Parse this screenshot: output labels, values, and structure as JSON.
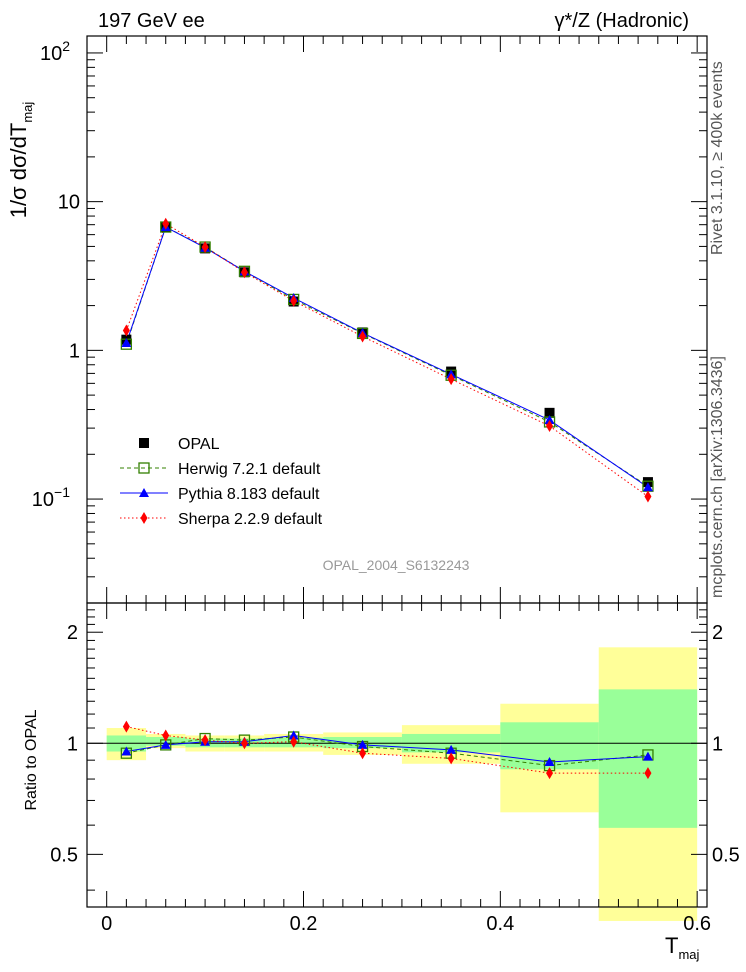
{
  "header": {
    "left_label": "197 GeV ee",
    "right_label": "γ*/Z (Hadronic)"
  },
  "side_labels": {
    "rivet": "Rivet 3.1.10, ≥ 400k events",
    "mcplots": "mcplots.cern.ch [arXiv:1306.3436]"
  },
  "main_plot": {
    "ylabel": "1/σ dσ/dT",
    "ylabel_sub": "maj",
    "watermark": "OPAL_2004_S6132243",
    "yticks": [
      {
        "value": 0.1,
        "base": "10",
        "exp": "−1"
      },
      {
        "value": 1,
        "base": "1",
        "exp": ""
      },
      {
        "value": 10,
        "base": "10",
        "exp": ""
      },
      {
        "value": 100,
        "base": "10",
        "exp": "2"
      }
    ]
  },
  "ratio_plot": {
    "ylabel": "Ratio to OPAL",
    "yticks": [
      "0.5",
      "1",
      "2"
    ]
  },
  "x_axis": {
    "label": "T",
    "label_sub": "maj",
    "ticks": [
      "0",
      "0.2",
      "0.4",
      "0.6"
    ]
  },
  "legend": [
    {
      "key": "opal",
      "label": "OPAL"
    },
    {
      "key": "herwig",
      "label": "Herwig 7.2.1 default"
    },
    {
      "key": "pythia",
      "label": "Pythia 8.183 default"
    },
    {
      "key": "sherpa",
      "label": "Sherpa 2.2.9 default"
    }
  ],
  "colors": {
    "opal": "#000000",
    "herwig": "#338000",
    "pythia": "#0000ff",
    "sherpa": "#ff0000",
    "band_inner": "#99ff99",
    "band_outer": "#ffff99"
  },
  "chart_data": [
    {
      "type": "line",
      "title": "",
      "xlabel": "T_maj",
      "ylabel": "1/σ dσ/dT_maj",
      "xlim": [
        -0.02,
        0.61
      ],
      "ylim": [
        0.02,
        130
      ],
      "yscale": "log",
      "x_edges": [
        0,
        0.04,
        0.08,
        0.12,
        0.16,
        0.22,
        0.3,
        0.4,
        0.5,
        0.6
      ],
      "x": [
        0.02,
        0.06,
        0.1,
        0.14,
        0.19,
        0.26,
        0.35,
        0.45,
        0.55
      ],
      "series": [
        {
          "name": "OPAL",
          "values": [
            1.18,
            6.8,
            4.85,
            3.35,
            2.13,
            1.32,
            0.72,
            0.38,
            0.13
          ]
        },
        {
          "name": "Herwig 7.2.1 default",
          "values": [
            1.1,
            6.75,
            4.95,
            3.4,
            2.2,
            1.3,
            0.68,
            0.33,
            0.122
          ]
        },
        {
          "name": "Pythia 8.183 default",
          "values": [
            1.12,
            6.75,
            4.9,
            3.4,
            2.25,
            1.31,
            0.69,
            0.34,
            0.12
          ]
        },
        {
          "name": "Sherpa 2.2.9 default",
          "values": [
            1.36,
            7.1,
            4.95,
            3.35,
            2.15,
            1.24,
            0.64,
            0.31,
            0.104
          ]
        }
      ],
      "legend_position": "left"
    },
    {
      "type": "line",
      "title": "",
      "xlabel": "T_maj",
      "ylabel": "Ratio to OPAL",
      "xlim": [
        -0.02,
        0.61
      ],
      "ylim": [
        0.36,
        2.4
      ],
      "yscale": "log",
      "x_edges": [
        0,
        0.04,
        0.08,
        0.12,
        0.16,
        0.22,
        0.3,
        0.4,
        0.5,
        0.6
      ],
      "x": [
        0.02,
        0.06,
        0.1,
        0.14,
        0.19,
        0.26,
        0.35,
        0.45,
        0.55
      ],
      "bands": {
        "inner": [
          [
            0.95,
            1.05
          ],
          [
            0.985,
            1.04
          ],
          [
            0.975,
            1.03
          ],
          [
            0.975,
            1.03
          ],
          [
            0.975,
            1.035
          ],
          [
            0.97,
            1.04
          ],
          [
            0.945,
            1.06
          ],
          [
            0.85,
            1.14
          ],
          [
            0.59,
            1.4
          ]
        ],
        "outer": [
          [
            0.9,
            1.1
          ],
          [
            0.97,
            1.06
          ],
          [
            0.95,
            1.05
          ],
          [
            0.95,
            1.05
          ],
          [
            0.95,
            1.06
          ],
          [
            0.93,
            1.07
          ],
          [
            0.88,
            1.12
          ],
          [
            0.65,
            1.28
          ],
          [
            0.33,
            1.82
          ]
        ]
      },
      "reference": 1,
      "series": [
        {
          "name": "Herwig 7.2.1 default",
          "values": [
            0.94,
            0.99,
            1.03,
            1.02,
            1.04,
            0.98,
            0.94,
            0.87,
            0.93
          ]
        },
        {
          "name": "Pythia 8.183 default",
          "values": [
            0.95,
            0.99,
            1.01,
            1.01,
            1.05,
            0.99,
            0.96,
            0.89,
            0.92
          ]
        },
        {
          "name": "Sherpa 2.2.9 default",
          "values": [
            1.11,
            1.05,
            1.02,
            1.0,
            1.01,
            0.94,
            0.91,
            0.83,
            0.83
          ]
        }
      ]
    }
  ]
}
